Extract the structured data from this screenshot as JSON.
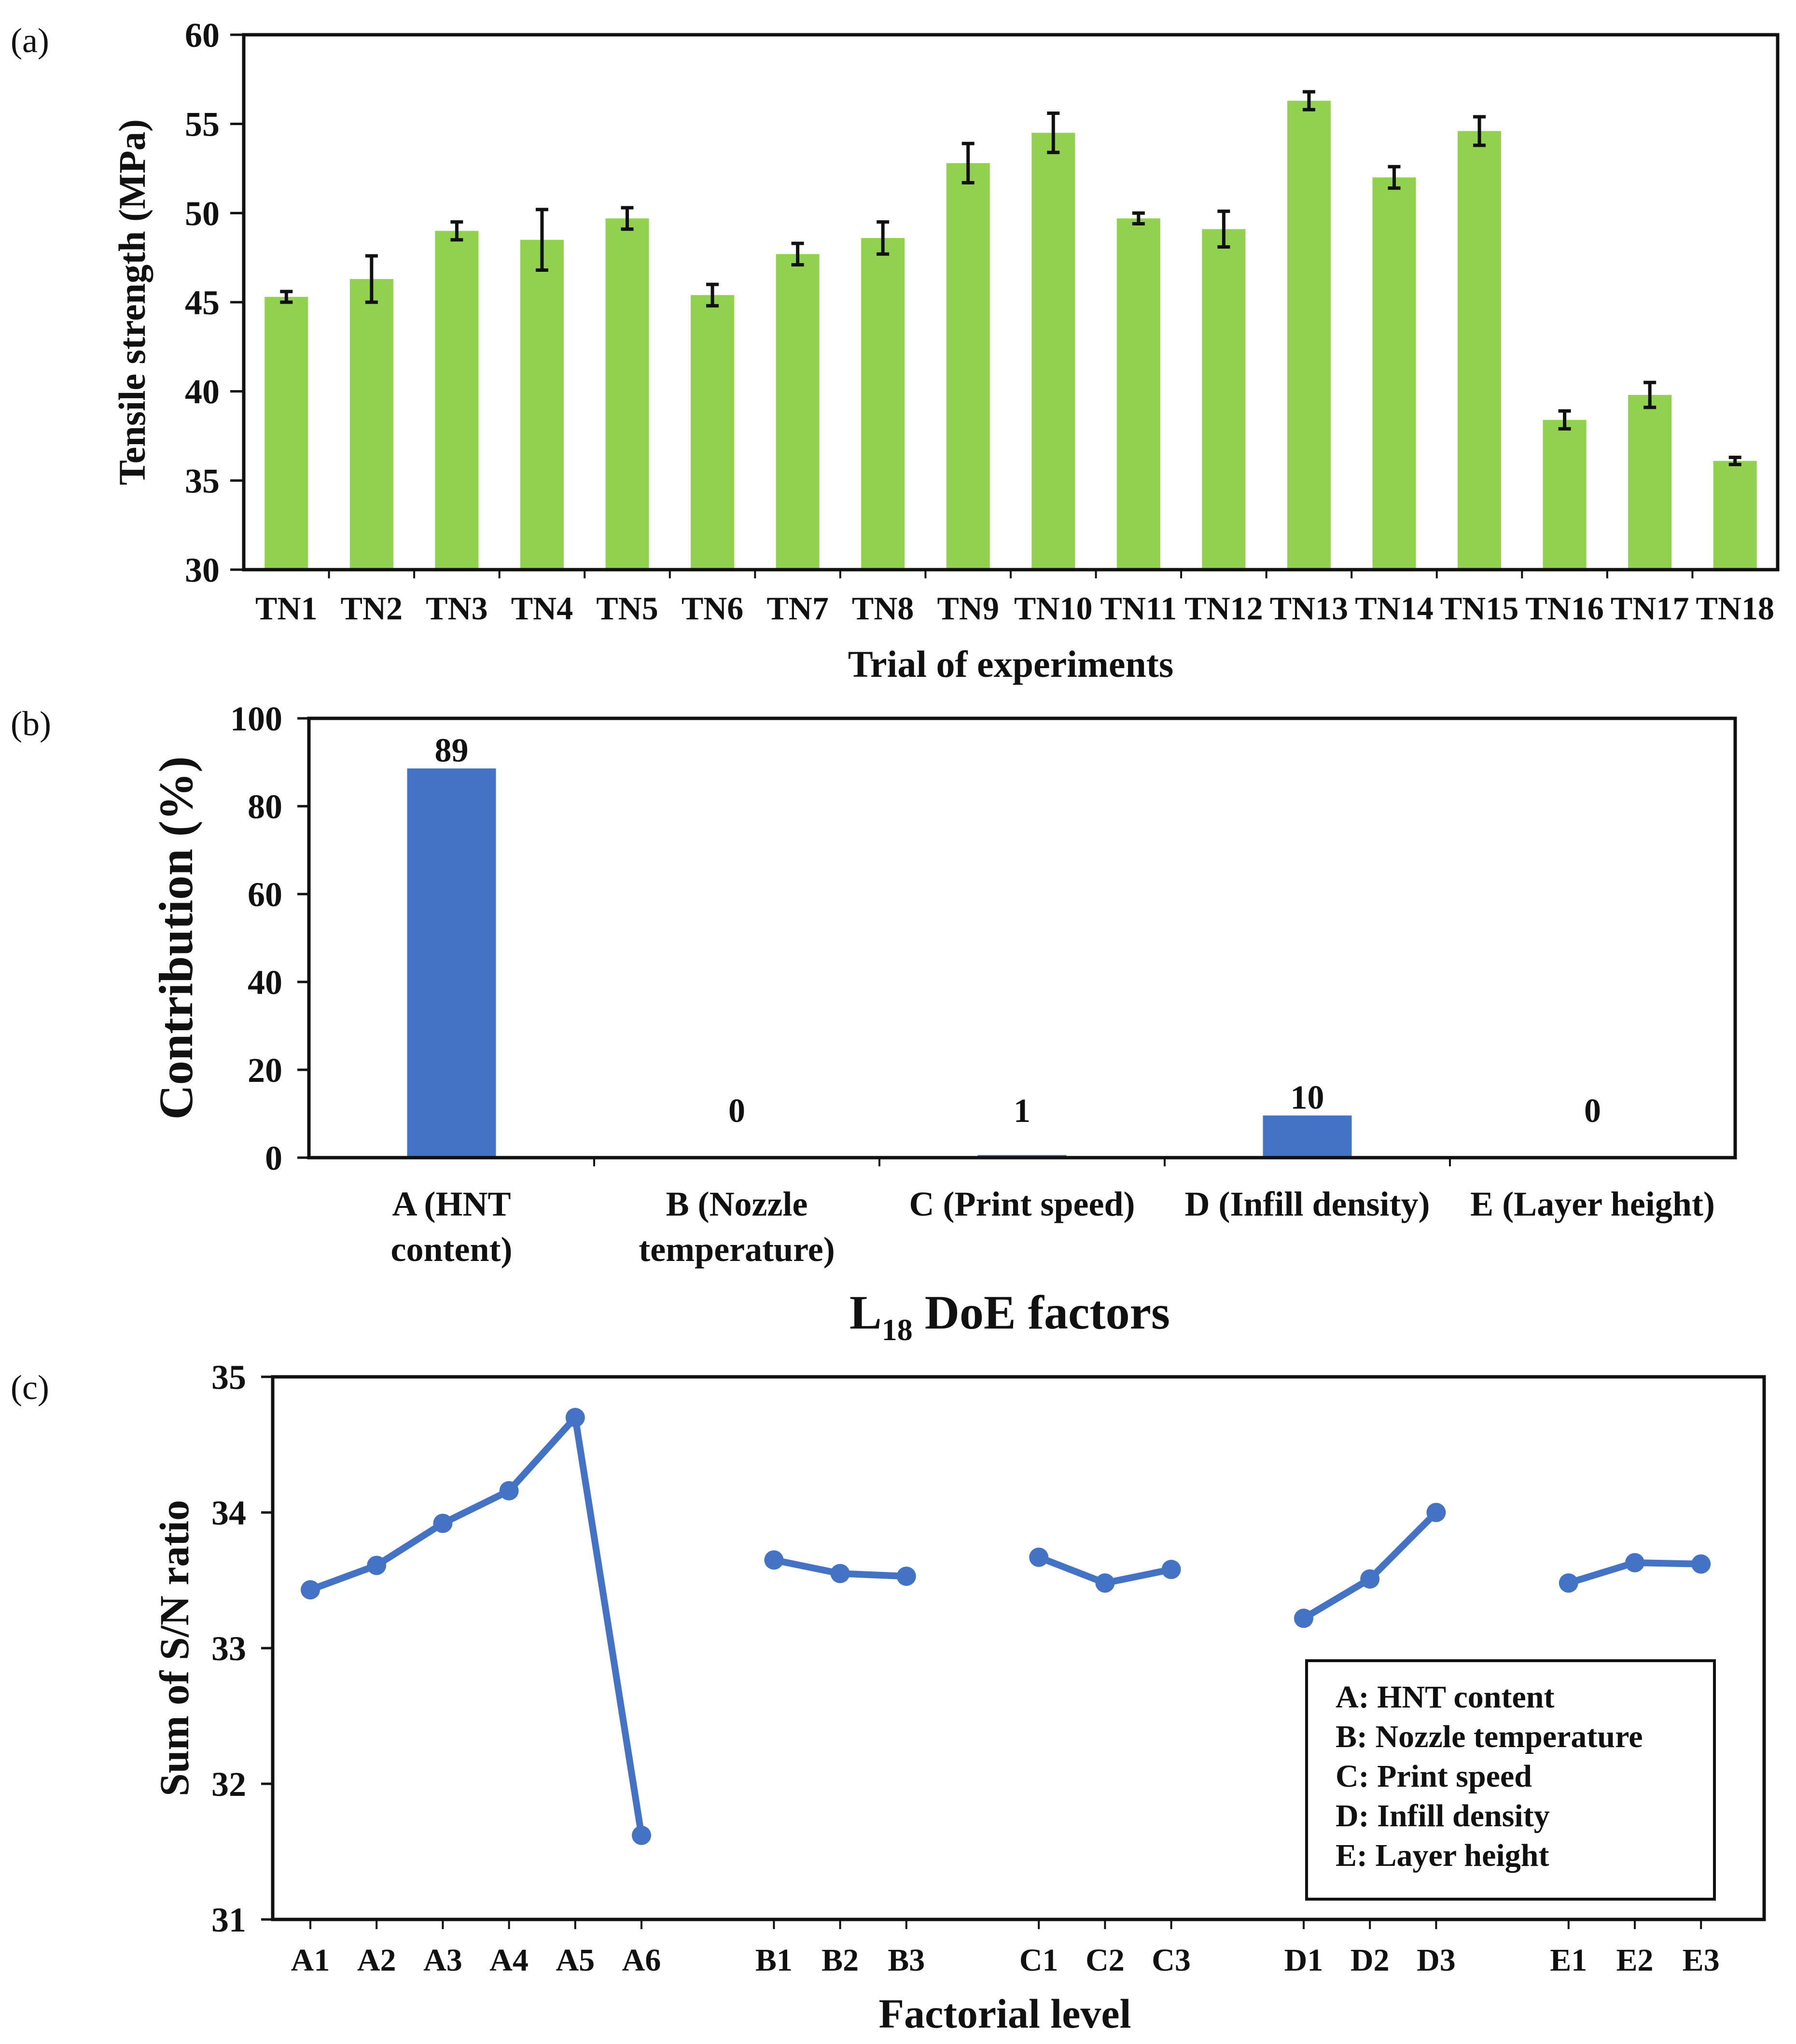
{
  "chart_data": [
    {
      "panel": "(a)",
      "type": "bar",
      "title": "",
      "xlabel": "Trial of experiments",
      "ylabel": "Tensile strength (MPa)",
      "ylim": [
        30,
        60
      ],
      "yticks": [
        "30",
        "35",
        "40",
        "45",
        "50",
        "55",
        "60"
      ],
      "categories": [
        "TN1",
        "TN2",
        "TN3",
        "TN4",
        "TN5",
        "TN6",
        "TN7",
        "TN8",
        "TN9",
        "TN10",
        "TN11",
        "TN12",
        "TN13",
        "TN14",
        "TN15",
        "TN16",
        "TN17",
        "TN18"
      ],
      "values": [
        45.3,
        46.3,
        49.0,
        48.5,
        49.7,
        45.4,
        47.7,
        48.6,
        52.8,
        54.5,
        49.7,
        49.1,
        56.3,
        52.0,
        54.6,
        38.4,
        39.8,
        36.1
      ],
      "errors": [
        0.3,
        1.3,
        0.5,
        1.7,
        0.6,
        0.6,
        0.6,
        0.9,
        1.1,
        1.1,
        0.3,
        1.0,
        0.5,
        0.6,
        0.8,
        0.5,
        0.7,
        0.2
      ],
      "color": "#92d050"
    },
    {
      "panel": "(b)",
      "type": "bar",
      "title": "",
      "xlabel": "L",
      "xlabel_sub": "18",
      "xlabel_rest": " DoE factors",
      "ylabel": "Contribution (%)",
      "ylim": [
        0,
        100
      ],
      "yticks": [
        "0",
        "20",
        "40",
        "60",
        "80",
        "100"
      ],
      "categories": [
        [
          "A (HNT",
          "content)"
        ],
        [
          "B (Nozzle",
          "temperature)"
        ],
        [
          "C (Print speed)"
        ],
        [
          "D (Infill density)"
        ],
        [
          "E (Layer height)"
        ]
      ],
      "values": [
        88.6,
        0.2,
        0.6,
        9.6,
        0.1
      ],
      "data_labels": [
        "89",
        "0",
        "1",
        "10",
        "0"
      ],
      "color": "#4472c4"
    },
    {
      "panel": "(c)",
      "type": "line",
      "title": "",
      "xlabel": "Factorial level",
      "ylabel": "Sum of S/N ratio",
      "ylim": [
        31,
        35
      ],
      "yticks": [
        "31",
        "32",
        "33",
        "34",
        "35"
      ],
      "color": "#4472c4",
      "series": [
        {
          "name": "A: HNT content",
          "x": [
            "A1",
            "A2",
            "A3",
            "A4",
            "A5",
            "A6"
          ],
          "values": [
            33.43,
            33.61,
            33.92,
            34.16,
            34.7,
            31.62
          ]
        },
        {
          "name": "B: Nozzle temperature",
          "x": [
            "B1",
            "B2",
            "B3"
          ],
          "values": [
            33.65,
            33.55,
            33.53
          ]
        },
        {
          "name": "C: Print speed",
          "x": [
            "C1",
            "C2",
            "C3"
          ],
          "values": [
            33.67,
            33.48,
            33.58
          ]
        },
        {
          "name": "D: Infill density",
          "x": [
            "D1",
            "D2",
            "D3"
          ],
          "values": [
            33.22,
            33.51,
            34.0
          ]
        },
        {
          "name": "E: Layer height",
          "x": [
            "E1",
            "E2",
            "E3"
          ],
          "values": [
            33.48,
            33.63,
            33.62
          ]
        }
      ],
      "legend": [
        "A: HNT content",
        "B: Nozzle temperature",
        "C: Print speed",
        "D: Infill density",
        "E: Layer height"
      ],
      "legend_position": "bottom-right"
    }
  ]
}
